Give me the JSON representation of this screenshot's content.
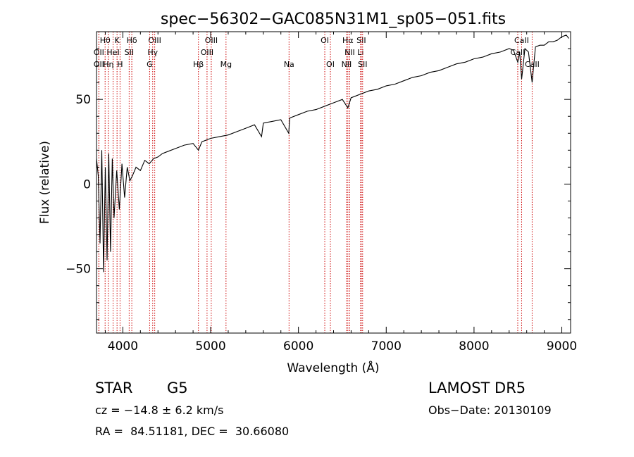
{
  "chart_data": {
    "type": "line",
    "title": "spec−56302−GAC085N31M1_sp05−051.fits",
    "xlabel": "Wavelength (Å)",
    "ylabel": "Flux (relative)",
    "xlim": [
      3700,
      9100
    ],
    "ylim": [
      -88,
      90
    ],
    "x_ticks": [
      4000,
      5000,
      6000,
      7000,
      8000,
      9000
    ],
    "y_ticks": [
      -50,
      0,
      50
    ],
    "y_tick_labels": [
      "−50",
      "0",
      "50"
    ],
    "grid": false,
    "series": [
      {
        "x": [
          3700,
          3720,
          3740,
          3760,
          3780,
          3800,
          3820,
          3840,
          3860,
          3880,
          3900,
          3930,
          3960,
          3990,
          4020,
          4050,
          4080,
          4110,
          4150,
          4200,
          4250,
          4300,
          4350,
          4400,
          4450,
          4500,
          4600,
          4700,
          4800,
          4861,
          4900,
          5000,
          5100,
          5200,
          5300,
          5400,
          5500,
          5580,
          5600,
          5700,
          5800,
          5890,
          5900,
          6000,
          6100,
          6200,
          6300,
          6400,
          6500,
          6563,
          6600,
          6700,
          6800,
          6900,
          7000,
          7100,
          7200,
          7300,
          7400,
          7500,
          7600,
          7700,
          7800,
          7900,
          8000,
          8100,
          8200,
          8300,
          8400,
          8450,
          8498,
          8520,
          8542,
          8580,
          8620,
          8662,
          8700,
          8750,
          8800,
          8850,
          8900,
          8950,
          9000,
          9050,
          9080
        ],
        "y": [
          15,
          5,
          -35,
          20,
          -52,
          10,
          -45,
          18,
          -40,
          15,
          -20,
          8,
          -15,
          12,
          -8,
          10,
          2,
          5,
          10,
          8,
          14,
          12,
          15,
          16,
          18,
          19,
          21,
          23,
          24,
          20,
          25,
          27,
          28,
          29,
          31,
          33,
          35,
          28,
          36,
          37,
          38,
          30,
          39,
          41,
          43,
          44,
          46,
          48,
          50,
          45,
          51,
          53,
          55,
          56,
          58,
          59,
          61,
          63,
          64,
          66,
          67,
          69,
          71,
          72,
          74,
          75,
          77,
          78,
          80,
          79,
          72,
          78,
          62,
          80,
          78,
          60,
          81,
          82,
          82,
          84,
          84,
          85,
          87,
          88,
          86
        ]
      }
    ],
    "lines": [
      {
        "label": "Hθ",
        "wavelength": 3798,
        "row": 1
      },
      {
        "label": "K",
        "wavelength": 3934,
        "row": 1
      },
      {
        "label": "Hδ",
        "wavelength": 4102,
        "row": 1
      },
      {
        "label": "OIII",
        "wavelength": 4363,
        "row": 1
      },
      {
        "label": "OIII",
        "wavelength": 5007,
        "row": 1
      },
      {
        "label": "OI",
        "wavelength": 6300,
        "row": 1
      },
      {
        "label": "Hα",
        "wavelength": 6563,
        "row": 1
      },
      {
        "label": "SII",
        "wavelength": 6716,
        "row": 1
      },
      {
        "label": "CaII",
        "wavelength": 8542,
        "row": 1
      },
      {
        "label": "OII",
        "wavelength": 3727,
        "row": 2
      },
      {
        "label": "HeI",
        "wavelength": 3889,
        "row": 2
      },
      {
        "label": "SII",
        "wavelength": 4072,
        "row": 2
      },
      {
        "label": "Hγ",
        "wavelength": 4340,
        "row": 2
      },
      {
        "label": "OIII",
        "wavelength": 4959,
        "row": 2
      },
      {
        "label": "NII",
        "wavelength": 6584,
        "row": 2
      },
      {
        "label": "Li",
        "wavelength": 6708,
        "row": 2
      },
      {
        "label": "CaII",
        "wavelength": 8498,
        "row": 2
      },
      {
        "label": "OII",
        "wavelength": 3727,
        "row": 3
      },
      {
        "label": "Hη",
        "wavelength": 3835,
        "row": 3
      },
      {
        "label": "H",
        "wavelength": 3968,
        "row": 3
      },
      {
        "label": "G",
        "wavelength": 4305,
        "row": 3
      },
      {
        "label": "Hβ",
        "wavelength": 4861,
        "row": 3
      },
      {
        "label": "Mg",
        "wavelength": 5175,
        "row": 3
      },
      {
        "label": "Na",
        "wavelength": 5893,
        "row": 3
      },
      {
        "label": "OI",
        "wavelength": 6364,
        "row": 3
      },
      {
        "label": "NII",
        "wavelength": 6548,
        "row": 3
      },
      {
        "label": "SII",
        "wavelength": 6731,
        "row": 3
      },
      {
        "label": "CaII",
        "wavelength": 8662,
        "row": 3
      }
    ],
    "line_color": "#cc0000"
  },
  "info": {
    "class": "STAR",
    "subclass": "G5",
    "survey": "LAMOST DR5",
    "cz": "cz = −14.8 ± 6.2 km/s",
    "obs_date": "Obs−Date: 20130109",
    "radec": "RA =  84.51181, DEC =  30.66080"
  }
}
